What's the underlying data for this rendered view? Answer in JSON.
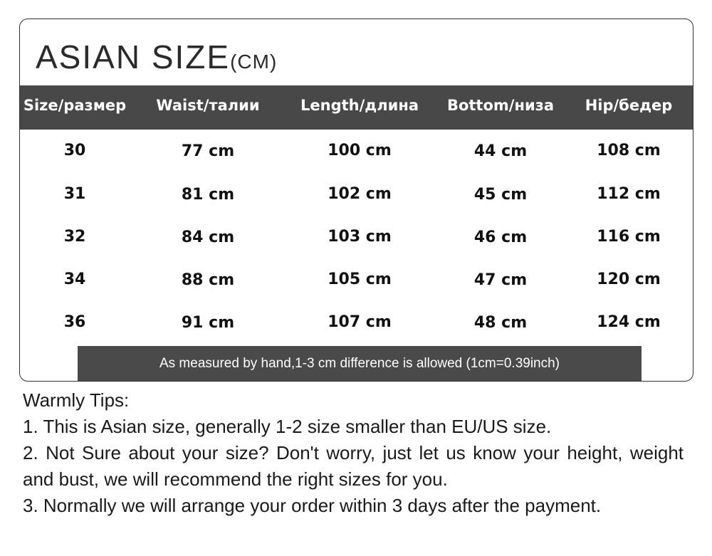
{
  "title": {
    "main": "ASIAN SIZE",
    "unit": "(CM)"
  },
  "table": {
    "headers": [
      "Size/размер",
      "Waist/талии",
      "Length/длина",
      "Bottom/низа",
      "Hip/бедер"
    ],
    "rows": [
      [
        "30",
        "77 cm",
        "100 cm",
        "44 cm",
        "108 cm"
      ],
      [
        "31",
        "81 cm",
        "102 cm",
        "45 cm",
        "112 cm"
      ],
      [
        "32",
        "84 cm",
        "103 cm",
        "46 cm",
        "116 cm"
      ],
      [
        "34",
        "88 cm",
        "105 cm",
        "47 cm",
        "120 cm"
      ],
      [
        "36",
        "91 cm",
        "107 cm",
        "48 cm",
        "124 cm"
      ]
    ],
    "note": "As measured by hand,1-3 cm difference is allowed (1cm=0.39inch)"
  },
  "tips": {
    "heading": "Warmly Tips:",
    "items": [
      "1. This is Asian size, generally 1-2 size smaller than EU/US size.",
      "2. Not Sure about your size? Don't worry, just let us know your height, weight and bust, we will recommend the right sizes for you.",
      "3. Normally we will arrange your order within 3 days after the payment."
    ]
  },
  "colors": {
    "header_bg": "#484848",
    "note_bg": "#4a4a4a"
  }
}
